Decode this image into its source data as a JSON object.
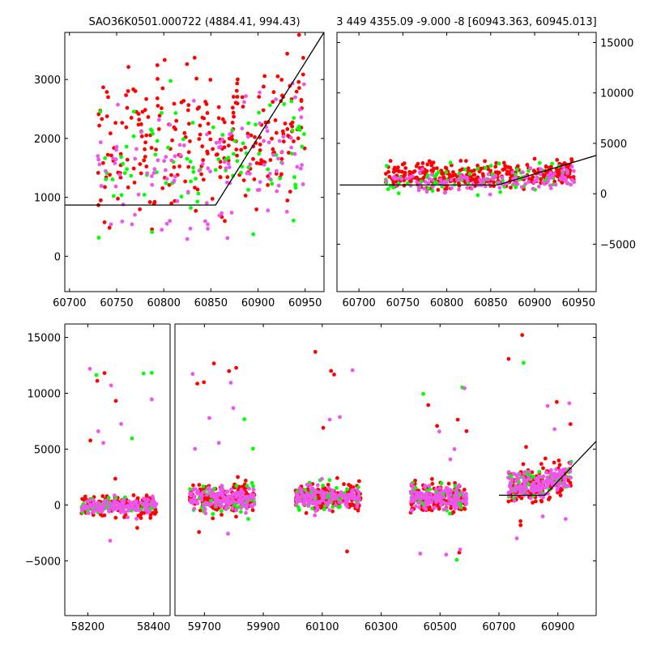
{
  "colors": {
    "background": "#ffffff",
    "red": "#ff0000",
    "green": "#00ff00",
    "magenta": "#ee55ee",
    "axis": "#000000"
  },
  "chart_data": [
    {
      "type": "scatter",
      "title": "SAO36K0501.000722 (4884.41, 994.43)",
      "xlim": [
        60695,
        60970
      ],
      "ylim": [
        -600,
        3800
      ],
      "x_ticks": [
        60700,
        60750,
        60800,
        60850,
        60900,
        60950
      ],
      "y_ticks": [
        0,
        1000,
        2000,
        3000
      ],
      "y_axis_side": "left",
      "grid": false,
      "series": [
        {
          "color": "#ff0000",
          "x_range": [
            60730,
            60950
          ],
          "y_center": 1900,
          "y_spread": 900,
          "count": 260
        },
        {
          "color": "#00ff00",
          "x_range": [
            60730,
            60950
          ],
          "y_center": 1500,
          "y_spread": 800,
          "count": 90
        },
        {
          "color": "#ee55ee",
          "x_range": [
            60730,
            60950
          ],
          "y_center": 1400,
          "y_spread": 800,
          "count": 120
        }
      ],
      "model_line": [
        [
          60695,
          870
        ],
        [
          60855,
          870
        ],
        [
          60970,
          3800
        ]
      ]
    },
    {
      "type": "scatter",
      "title": "3 449 4355.09 -9.000 -8 [60943.363, 60945.013]",
      "xlim": [
        60675,
        60970
      ],
      "ylim": [
        -9700,
        16000
      ],
      "x_ticks": [
        60700,
        60750,
        60800,
        60850,
        60900,
        60950
      ],
      "y_ticks": [
        -5000,
        0,
        5000,
        10000,
        15000
      ],
      "y_axis_side": "right",
      "grid": false,
      "series": [
        {
          "color": "#ff0000",
          "x_range": [
            60730,
            60945
          ],
          "y_center": 1700,
          "y_spread": 900,
          "count": 330
        },
        {
          "color": "#00ff00",
          "x_range": [
            60730,
            60945
          ],
          "y_center": 1500,
          "y_spread": 1000,
          "count": 80
        },
        {
          "color": "#ee55ee",
          "x_range": [
            60730,
            60945
          ],
          "y_center": 1200,
          "y_spread": 900,
          "count": 120
        }
      ],
      "model_line": [
        [
          60678,
          870
        ],
        [
          60858,
          870
        ],
        [
          60970,
          3800
        ]
      ]
    },
    {
      "type": "scatter",
      "title": "",
      "broken_x_axis": true,
      "segments": [
        {
          "xlim": [
            58130,
            58450
          ],
          "x_ticks": [
            58200,
            58400
          ]
        },
        {
          "xlim": [
            59600,
            61030
          ],
          "x_ticks": [
            59700,
            59900,
            60100,
            60300,
            60500,
            60700,
            60900
          ]
        }
      ],
      "ylim": [
        -9900,
        16200
      ],
      "y_ticks": [
        -5000,
        0,
        5000,
        10000,
        15000
      ],
      "y_axis_side": "left",
      "grid": false,
      "point_groups": [
        {
          "x_range": [
            58180,
            58410
          ],
          "y_center": 0,
          "y_spread": 650
        },
        {
          "x_range": [
            59650,
            59870
          ],
          "y_center": 600,
          "y_spread": 900
        },
        {
          "x_range": [
            60010,
            60230
          ],
          "y_center": 700,
          "y_spread": 900
        },
        {
          "x_range": [
            60400,
            60590
          ],
          "y_center": 600,
          "y_spread": 900
        },
        {
          "x_range": [
            60730,
            60945
          ],
          "y_center": 1800,
          "y_spread": 1000
        }
      ],
      "series_colors": [
        "#ff0000",
        "#00ff00",
        "#ee55ee"
      ],
      "model_line": [
        [
          60700,
          870
        ],
        [
          60855,
          870
        ],
        [
          61030,
          5700
        ]
      ]
    }
  ]
}
